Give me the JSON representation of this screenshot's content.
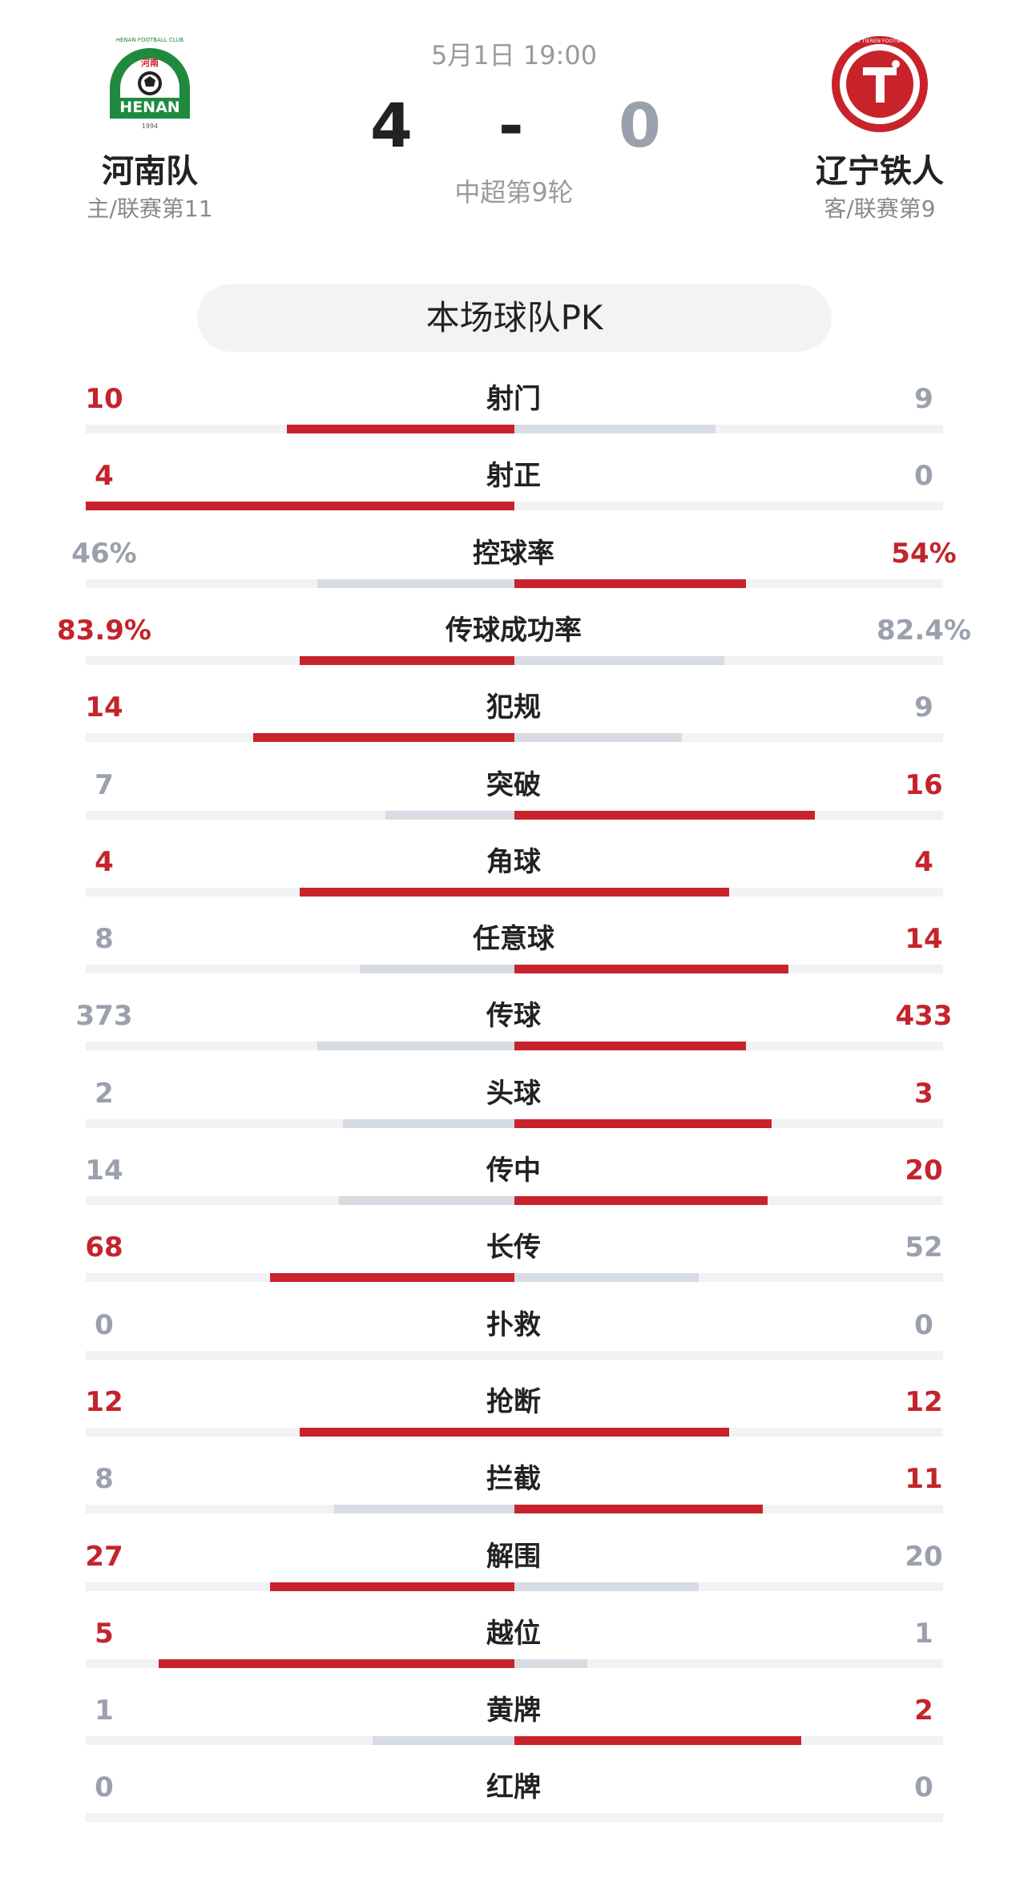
{
  "match": {
    "datetime": "5月1日 19:00",
    "round": "中超第9轮",
    "score_home": "4",
    "score_sep": "-",
    "score_away": "0"
  },
  "home_team": {
    "name": "河南队",
    "sub": "主/联赛第11",
    "logo_icon": "henan-club-crest",
    "logo_text": "HENAN",
    "logo_year": "1994",
    "logo_ring_text": "HENAN FOOTBALL CLUB",
    "logo_cn": "河南"
  },
  "away_team": {
    "name": "辽宁铁人",
    "sub": "客/联赛第9",
    "logo_icon": "liaoning-tieren-club-crest",
    "logo_ring_text": "LIAONING TIEREN FOOTBALL CLUB"
  },
  "pk_title": "本场球队PK",
  "colors": {
    "win": "#c4242c",
    "lose": "#9aa1ad",
    "bar_win": "#c8232b",
    "bar_lose": "#d7dce3",
    "home_green": "#1f8a3e",
    "away_red": "#c8232b"
  },
  "stats": [
    {
      "label": "射门",
      "left": "10",
      "right": "9",
      "left_share": 0.53,
      "right_share": 0.47,
      "left_win": true,
      "right_win": false
    },
    {
      "label": "射正",
      "left": "4",
      "right": "0",
      "left_share": 1.0,
      "right_share": 0.0,
      "left_win": true,
      "right_win": false
    },
    {
      "label": "控球率",
      "left": "46%",
      "right": "54%",
      "left_share": 0.46,
      "right_share": 0.54,
      "left_win": false,
      "right_win": true
    },
    {
      "label": "传球成功率",
      "left": "83.9%",
      "right": "82.4%",
      "left_share": 0.5,
      "right_share": 0.49,
      "left_win": true,
      "right_win": false
    },
    {
      "label": "犯规",
      "left": "14",
      "right": "9",
      "left_share": 0.61,
      "right_share": 0.39,
      "left_win": true,
      "right_win": false
    },
    {
      "label": "突破",
      "left": "7",
      "right": "16",
      "left_share": 0.3,
      "right_share": 0.7,
      "left_win": false,
      "right_win": true
    },
    {
      "label": "角球",
      "left": "4",
      "right": "4",
      "left_share": 0.5,
      "right_share": 0.5,
      "left_win": true,
      "right_win": true
    },
    {
      "label": "任意球",
      "left": "8",
      "right": "14",
      "left_share": 0.36,
      "right_share": 0.64,
      "left_win": false,
      "right_win": true
    },
    {
      "label": "传球",
      "left": "373",
      "right": "433",
      "left_share": 0.46,
      "right_share": 0.54,
      "left_win": false,
      "right_win": true
    },
    {
      "label": "头球",
      "left": "2",
      "right": "3",
      "left_share": 0.4,
      "right_share": 0.6,
      "left_win": false,
      "right_win": true
    },
    {
      "label": "传中",
      "left": "14",
      "right": "20",
      "left_share": 0.41,
      "right_share": 0.59,
      "left_win": false,
      "right_win": true
    },
    {
      "label": "长传",
      "left": "68",
      "right": "52",
      "left_share": 0.57,
      "right_share": 0.43,
      "left_win": true,
      "right_win": false
    },
    {
      "label": "扑救",
      "left": "0",
      "right": "0",
      "left_share": 0.0,
      "right_share": 0.0,
      "left_win": false,
      "right_win": false
    },
    {
      "label": "抢断",
      "left": "12",
      "right": "12",
      "left_share": 0.5,
      "right_share": 0.5,
      "left_win": true,
      "right_win": true
    },
    {
      "label": "拦截",
      "left": "8",
      "right": "11",
      "left_share": 0.42,
      "right_share": 0.58,
      "left_win": false,
      "right_win": true
    },
    {
      "label": "解围",
      "left": "27",
      "right": "20",
      "left_share": 0.57,
      "right_share": 0.43,
      "left_win": true,
      "right_win": false
    },
    {
      "label": "越位",
      "left": "5",
      "right": "1",
      "left_share": 0.83,
      "right_share": 0.17,
      "left_win": true,
      "right_win": false
    },
    {
      "label": "黄牌",
      "left": "1",
      "right": "2",
      "left_share": 0.33,
      "right_share": 0.67,
      "left_win": false,
      "right_win": true
    },
    {
      "label": "红牌",
      "left": "0",
      "right": "0",
      "left_share": 0.0,
      "right_share": 0.0,
      "left_win": false,
      "right_win": false
    }
  ]
}
